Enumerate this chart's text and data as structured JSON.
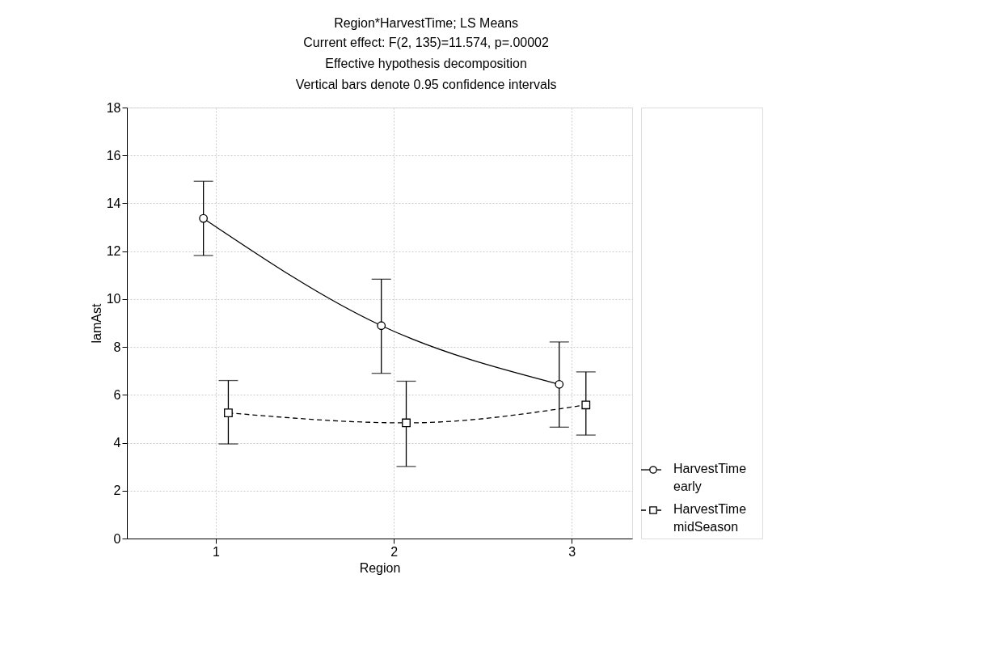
{
  "chart_data": {
    "type": "line",
    "title": "Region*HarvestTime; LS Means",
    "subtitle": [
      "Current effect: F(2, 135)=11.574, p=.00002",
      "Effective hypothesis decomposition",
      "Vertical bars denote 0.95 confidence intervals"
    ],
    "xlabel": "Region",
    "ylabel": "lamAst",
    "xlim": [
      0.5,
      3.34
    ],
    "xticks": [
      {
        "value": 1,
        "label": "1"
      },
      {
        "value": 2,
        "label": "2"
      },
      {
        "value": 3,
        "label": "3"
      }
    ],
    "ylim": [
      0,
      18
    ],
    "yticks": [
      0,
      2,
      4,
      6,
      8,
      10,
      12,
      14,
      16,
      18
    ],
    "grid": true,
    "legend": "bottom right",
    "series": [
      {
        "name": "HarvestTime early",
        "color": "#000000",
        "marker": "circle",
        "line_style": "solid",
        "x": [
          0.93,
          1.93,
          2.93
        ],
        "values": [
          13.37,
          8.89,
          6.44
        ],
        "errors": [
          [
            11.82,
            14.92
          ],
          [
            6.9,
            10.83
          ],
          [
            4.65,
            8.21
          ]
        ]
      },
      {
        "name": "HarvestTime midSeason",
        "color": "#000000",
        "marker": "square",
        "line_style": "dashed",
        "x": [
          1.07,
          2.07,
          3.08
        ],
        "values": [
          5.25,
          4.83,
          5.58
        ],
        "errors": [
          [
            3.95,
            6.6
          ],
          [
            3.01,
            6.57
          ],
          [
            4.32,
            6.96
          ]
        ]
      }
    ]
  }
}
